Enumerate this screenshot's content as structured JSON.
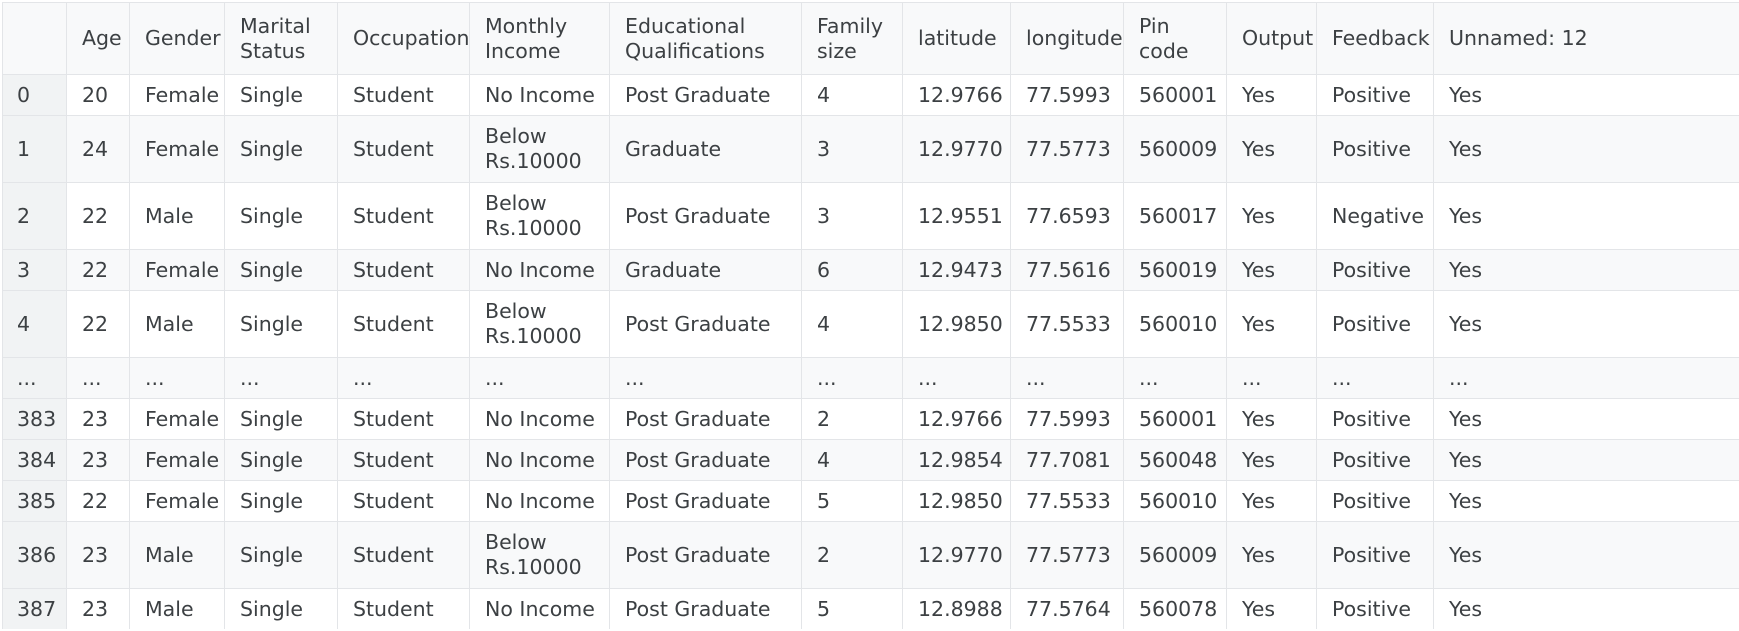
{
  "table": {
    "index_header": "",
    "columns": [
      "Age",
      "Gender",
      "Marital Status",
      "Occupation",
      "Monthly Income",
      "Educational Qualifications",
      "Family size",
      "latitude",
      "longitude",
      "Pin code",
      "Output",
      "Feedback",
      "Unnamed: 12"
    ],
    "rows": [
      {
        "index": "0",
        "cells": [
          "20",
          "Female",
          "Single",
          "Student",
          "No Income",
          "Post Graduate",
          "4",
          "12.9766",
          "77.5993",
          "560001",
          "Yes",
          "Positive",
          "Yes"
        ]
      },
      {
        "index": "1",
        "cells": [
          "24",
          "Female",
          "Single",
          "Student",
          "Below Rs.10000",
          "Graduate",
          "3",
          "12.9770",
          "77.5773",
          "560009",
          "Yes",
          "Positive",
          "Yes"
        ]
      },
      {
        "index": "2",
        "cells": [
          "22",
          "Male",
          "Single",
          "Student",
          "Below Rs.10000",
          "Post Graduate",
          "3",
          "12.9551",
          "77.6593",
          "560017",
          "Yes",
          "Negative",
          "Yes"
        ]
      },
      {
        "index": "3",
        "cells": [
          "22",
          "Female",
          "Single",
          "Student",
          "No Income",
          "Graduate",
          "6",
          "12.9473",
          "77.5616",
          "560019",
          "Yes",
          "Positive",
          "Yes"
        ]
      },
      {
        "index": "4",
        "cells": [
          "22",
          "Male",
          "Single",
          "Student",
          "Below Rs.10000",
          "Post Graduate",
          "4",
          "12.9850",
          "77.5533",
          "560010",
          "Yes",
          "Positive",
          "Yes"
        ]
      },
      {
        "index": "...",
        "cells": [
          "...",
          "...",
          "...",
          "...",
          "...",
          "...",
          "...",
          "...",
          "...",
          "...",
          "...",
          "...",
          "..."
        ]
      },
      {
        "index": "383",
        "cells": [
          "23",
          "Female",
          "Single",
          "Student",
          "No Income",
          "Post Graduate",
          "2",
          "12.9766",
          "77.5993",
          "560001",
          "Yes",
          "Positive",
          "Yes"
        ]
      },
      {
        "index": "384",
        "cells": [
          "23",
          "Female",
          "Single",
          "Student",
          "No Income",
          "Post Graduate",
          "4",
          "12.9854",
          "77.7081",
          "560048",
          "Yes",
          "Positive",
          "Yes"
        ]
      },
      {
        "index": "385",
        "cells": [
          "22",
          "Female",
          "Single",
          "Student",
          "No Income",
          "Post Graduate",
          "5",
          "12.9850",
          "77.5533",
          "560010",
          "Yes",
          "Positive",
          "Yes"
        ]
      },
      {
        "index": "386",
        "cells": [
          "23",
          "Male",
          "Single",
          "Student",
          "Below Rs.10000",
          "Post Graduate",
          "2",
          "12.9770",
          "77.5773",
          "560009",
          "Yes",
          "Positive",
          "Yes"
        ]
      },
      {
        "index": "387",
        "cells": [
          "23",
          "Male",
          "Single",
          "Student",
          "No Income",
          "Post Graduate",
          "5",
          "12.8988",
          "77.5764",
          "560078",
          "Yes",
          "Positive",
          "Yes"
        ]
      }
    ]
  }
}
